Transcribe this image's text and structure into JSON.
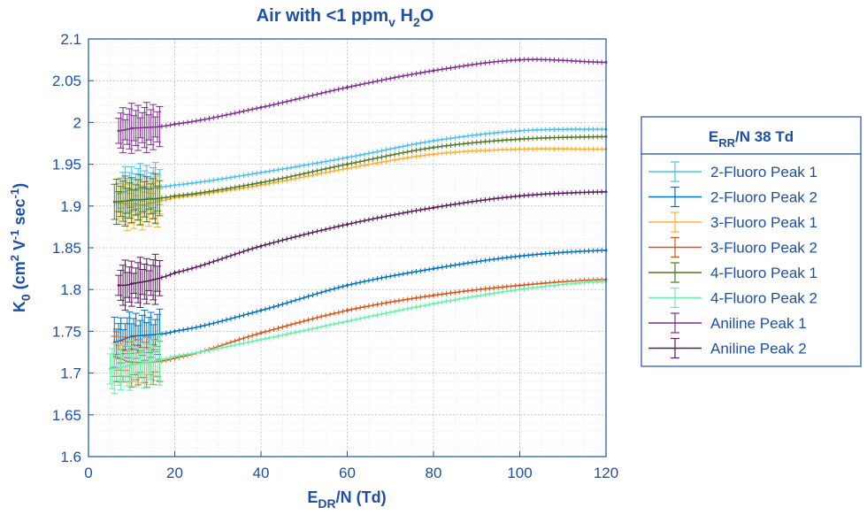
{
  "chart_data": {
    "type": "line",
    "title": {
      "main": "Air with <1 ppm",
      "sub1": "v",
      "mid": " H",
      "sub2": "2",
      "tail": "O"
    },
    "xlabel": {
      "main": "E",
      "sub": "DR",
      "tail": "/N (Td)"
    },
    "ylabel": {
      "main": "K",
      "sub": "0",
      "tail1": " (cm",
      "sup1": "2",
      "tail2": " V",
      "sup2": "-1",
      "tail3": " sec",
      "sup3": "-1",
      "tail4": ")"
    },
    "xlim": [
      0,
      120
    ],
    "ylim": [
      1.6,
      2.1
    ],
    "xticks": [
      0,
      20,
      40,
      60,
      80,
      100,
      120
    ],
    "yticks": [
      1.6,
      1.65,
      1.7,
      1.75,
      1.8,
      1.85,
      1.9,
      1.95,
      2,
      2.05,
      2.1
    ],
    "ytick_labels": [
      "1.6",
      "1.65",
      "1.7",
      "1.75",
      "1.8",
      "1.85",
      "1.9",
      "1.95",
      "2",
      "2.05",
      "2.1"
    ],
    "grid": true,
    "legend": {
      "placement": "right",
      "title": {
        "main": "E",
        "sub": "RR",
        "tail": "/N 38 Td"
      }
    },
    "series": [
      {
        "name": "2-Fluoro Peak 1",
        "color": "#4dbeee",
        "x": [
          7,
          10,
          20,
          40,
          60,
          80,
          100,
          120
        ],
        "y": [
          1.915,
          1.92,
          1.925,
          1.94,
          1.958,
          1.978,
          1.99,
          1.992
        ]
      },
      {
        "name": "2-Fluoro Peak 2",
        "color": "#0072bd",
        "x": [
          6,
          10,
          20,
          40,
          60,
          80,
          100,
          120
        ],
        "y": [
          1.737,
          1.744,
          1.75,
          1.775,
          1.805,
          1.825,
          1.84,
          1.847
        ]
      },
      {
        "name": "3-Fluoro Peak 1",
        "color": "#fdb032",
        "x": [
          7,
          10,
          20,
          40,
          60,
          80,
          100,
          120
        ],
        "y": [
          1.905,
          1.9,
          1.91,
          1.925,
          1.945,
          1.962,
          1.968,
          1.968
        ]
      },
      {
        "name": "3-Fluoro Peak 2",
        "color": "#d95319",
        "x": [
          6,
          10,
          20,
          40,
          60,
          80,
          100,
          120
        ],
        "y": [
          1.72,
          1.713,
          1.718,
          1.748,
          1.775,
          1.793,
          1.805,
          1.812
        ]
      },
      {
        "name": "4-Fluoro Peak 1",
        "color": "#4f7a21",
        "x": [
          6,
          10,
          20,
          40,
          60,
          80,
          100,
          120
        ],
        "y": [
          1.905,
          1.907,
          1.912,
          1.928,
          1.95,
          1.97,
          1.98,
          1.983
        ]
      },
      {
        "name": "4-Fluoro Peak 2",
        "color": "#66f0a8",
        "x": [
          5,
          10,
          20,
          40,
          60,
          80,
          100,
          120
        ],
        "y": [
          1.705,
          1.71,
          1.72,
          1.74,
          1.762,
          1.783,
          1.8,
          1.81
        ]
      },
      {
        "name": "Aniline Peak 1",
        "color": "#7e2f8e",
        "x": [
          7,
          10,
          20,
          40,
          60,
          80,
          100,
          120
        ],
        "y": [
          1.99,
          1.993,
          1.998,
          2.018,
          2.042,
          2.062,
          2.075,
          2.072
        ]
      },
      {
        "name": "Aniline Peak 2",
        "color": "#5a1a5e",
        "x": [
          7,
          10,
          20,
          40,
          60,
          80,
          100,
          120
        ],
        "y": [
          1.805,
          1.807,
          1.82,
          1.852,
          1.878,
          1.898,
          1.912,
          1.917
        ]
      }
    ]
  }
}
